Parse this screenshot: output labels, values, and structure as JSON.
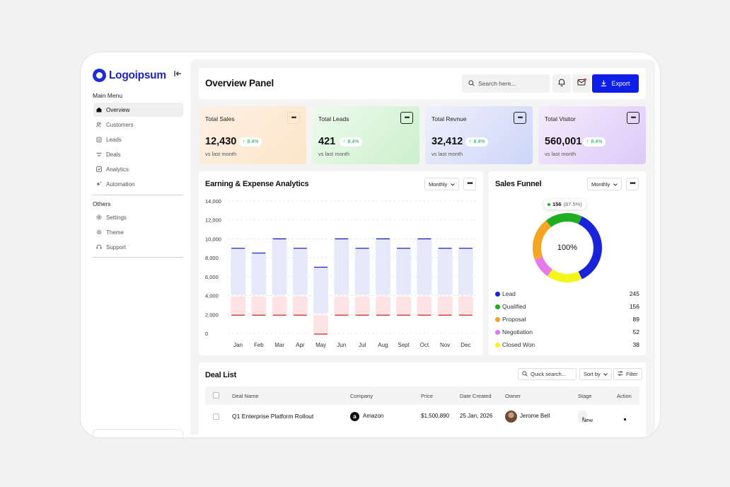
{
  "app": {
    "logo_text": "Logoipsum",
    "brand_color": "#1e25b8"
  },
  "sidebar": {
    "main_menu_title": "Main Menu",
    "main_items": [
      {
        "label": "Overview",
        "icon": "home-icon",
        "active": true
      },
      {
        "label": "Customers",
        "icon": "users-icon"
      },
      {
        "label": "Leads",
        "icon": "clipboard-icon"
      },
      {
        "label": "Deals",
        "icon": "handshake-icon"
      },
      {
        "label": "Analytics",
        "icon": "chart-icon"
      },
      {
        "label": "Automation",
        "icon": "sparkle-icon"
      }
    ],
    "others_title": "Others",
    "other_items": [
      {
        "label": "Settings",
        "icon": "gear-icon"
      },
      {
        "label": "Theme",
        "icon": "sun-icon"
      },
      {
        "label": "Support",
        "icon": "headset-icon"
      }
    ]
  },
  "header": {
    "title": "Overview Panel",
    "search_placeholder": "Search here...",
    "export_label": "Export",
    "accent_color": "#0f1ee6"
  },
  "stats": [
    {
      "label": "Total Sales",
      "value": "12,430",
      "change": "8.4%",
      "sub": "vs last month",
      "color": "#fdeedd"
    },
    {
      "label": "Total Leads",
      "value": "421",
      "change": "8.4%",
      "sub": "vs last month",
      "color": "#def6dd"
    },
    {
      "label": "Total Revnue",
      "value": "32,412",
      "change": "8.4%",
      "sub": "vs last month",
      "color": "#e2e6fb"
    },
    {
      "label": "Total Visitor",
      "value": "560,001",
      "change": "8.4%",
      "sub": "vs last month",
      "color": "#efe4fb"
    }
  ],
  "analytics": {
    "title": "Earning & Expense Analytics",
    "period": "Monthly"
  },
  "chart_data": {
    "type": "bar",
    "categories": [
      "Jan",
      "Feb",
      "Mar",
      "Apr",
      "May",
      "Jun",
      "Jul",
      "Aug",
      "Sept",
      "Oct",
      "Nov",
      "Dec"
    ],
    "series": [
      {
        "values": [
          5000,
          4500,
          6000,
          5000,
          5000,
          6000,
          5000,
          6000,
          5000,
          6000,
          5000,
          5000
        ],
        "color": "#e7e9fb",
        "edge": "#1e25b8"
      },
      {
        "values": [
          4000,
          4000,
          4000,
          4000,
          2000,
          4000,
          4000,
          4000,
          4000,
          4000,
          4000,
          4000
        ],
        "color": "#fde3e3",
        "edge": "#c62828"
      }
    ],
    "stacked": true,
    "ylim": [
      0,
      14000
    ],
    "yticks": [
      "14,000",
      "12,000",
      "10,000",
      "8,000",
      "6,000",
      "4,000",
      "2,000",
      "0"
    ],
    "grid": true
  },
  "funnel": {
    "title": "Sales Funnel",
    "period": "Monthly",
    "center_label": "100%",
    "tooltip_value": "156",
    "tooltip_pct": "(87.5%)",
    "items": [
      {
        "label": "Lead",
        "value": 245,
        "color": "#1a23d9"
      },
      {
        "label": "Qualified",
        "value": 156,
        "color": "#1fae1f"
      },
      {
        "label": "Proposal",
        "value": 89,
        "color": "#f5a524"
      },
      {
        "label": "Negotiation",
        "value": 52,
        "color": "#e879e8"
      },
      {
        "label": "Closed Won",
        "value": 38,
        "color": "#f5f51c"
      }
    ]
  },
  "deals": {
    "title": "Deal List",
    "search_placeholder": "Quick search...",
    "sort_label": "Sort by",
    "filter_label": "Filter",
    "columns": [
      "Deal Name",
      "Company",
      "Price",
      "Date Created",
      "Owner",
      "Stage",
      "Action"
    ],
    "rows": [
      {
        "name": "Q1 Enterprise Platform Rollout",
        "company": "Amazon",
        "price": "$1,500,890",
        "date": "25 Jan, 2026",
        "owner": "Jerome Bell",
        "stage": "New"
      }
    ]
  }
}
